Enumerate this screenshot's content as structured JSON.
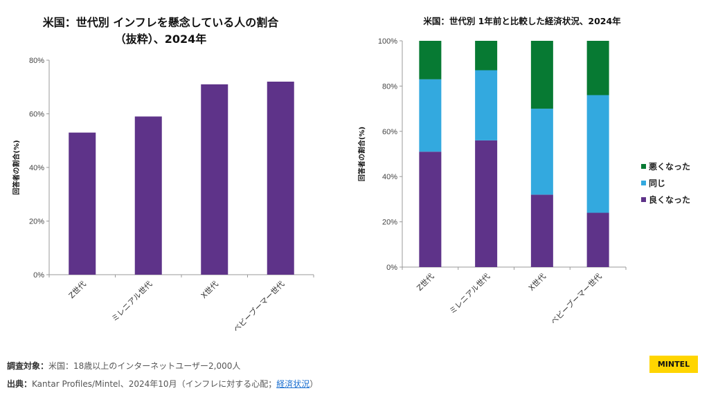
{
  "chart_data": [
    {
      "type": "bar",
      "title_line1": "米国：世代別 インフレを懸念している人の割合",
      "title_line2": "（抜粋）、2024年",
      "ylabel": "回答者の割合(%)",
      "ylim": [
        0,
        80
      ],
      "yticks": [
        "0%",
        "20%",
        "40%",
        "60%",
        "80%"
      ],
      "categories": [
        "Z世代",
        "ミレニアル世代",
        "X世代",
        "ベビーブーマー世代"
      ],
      "values": [
        53,
        59,
        71,
        72
      ],
      "color": "#5e3389"
    },
    {
      "type": "bar",
      "stacked": true,
      "title": "米国：世代別 1年前と比較した経済状況、2024年",
      "ylabel": "回答者の割合(%)",
      "ylim": [
        0,
        100
      ],
      "yticks": [
        "0%",
        "20%",
        "40%",
        "60%",
        "80%",
        "100%"
      ],
      "categories": [
        "Z世代",
        "ミレニアル世代",
        "X世代",
        "ベビーブーマー世代"
      ],
      "legend_position": "right",
      "series": [
        {
          "name": "良くなった",
          "values": [
            51,
            56,
            32,
            24
          ],
          "color": "#5e3389"
        },
        {
          "name": "同じ",
          "values": [
            32,
            31,
            38,
            52
          ],
          "color": "#33a9df"
        },
        {
          "name": "悪くなった",
          "values": [
            17,
            13,
            30,
            24
          ],
          "color": "#077a33"
        }
      ]
    }
  ],
  "footer": {
    "target_label": "調査対象：",
    "target_text": "米国：18歳以上のインターネットユーザー2,000人",
    "source_label": "出典：",
    "source_text": "Kantar Profiles/Mintel、2024年10月（インフレに対する心配；",
    "source_link": "経済状況",
    "source_end": "）"
  },
  "logo": "MINTEL"
}
